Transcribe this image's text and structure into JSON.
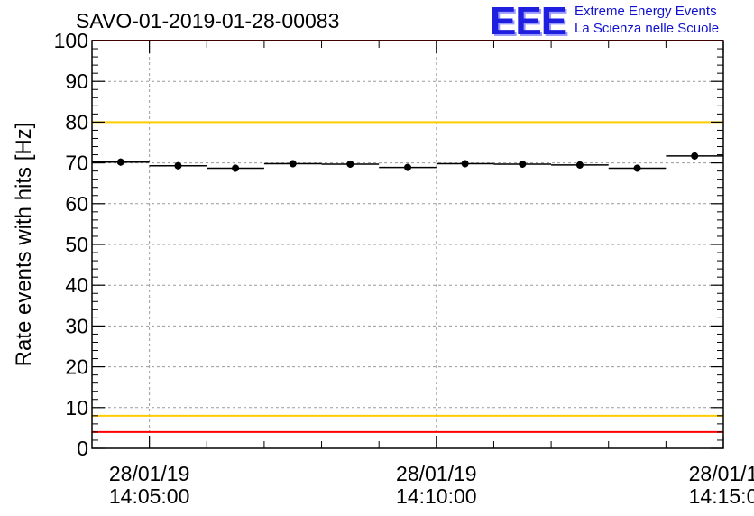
{
  "header": {
    "title": "SAVO-01-2019-01-28-00083",
    "logo_mark": "EEE",
    "logo_line1": "Extreme Energy Events",
    "logo_line2": "La Scienza nelle Scuole"
  },
  "colors": {
    "red_line": "#ff0000",
    "yellow_line": "#ffcc00",
    "data": "#000000",
    "grid": "#9a9a9a",
    "logo": "#1f1fe0"
  },
  "chart_data": {
    "type": "scatter",
    "title": "SAVO-01-2019-01-28-00083",
    "xlabel": "",
    "ylabel": "Rate events with hits [Hz]",
    "ylim": [
      0,
      100
    ],
    "xlim_seconds_from_14_05_00": [
      -60,
      600
    ],
    "y_ticks": [
      0,
      10,
      20,
      30,
      40,
      50,
      60,
      70,
      80,
      90,
      100
    ],
    "x_ticks": [
      {
        "t": 0,
        "line1": "28/01/19",
        "line2": "14:05:00"
      },
      {
        "t": 300,
        "line1": "28/01/19",
        "line2": "14:10:00"
      },
      {
        "t": 600,
        "line1": "28/01/1",
        "line2": "14:15:0"
      }
    ],
    "grid": true,
    "bin_width_seconds": 60,
    "points": [
      {
        "t": -30,
        "y": 70.2
      },
      {
        "t": 30,
        "y": 69.3
      },
      {
        "t": 90,
        "y": 68.7
      },
      {
        "t": 150,
        "y": 69.8
      },
      {
        "t": 210,
        "y": 69.7
      },
      {
        "t": 270,
        "y": 68.9
      },
      {
        "t": 330,
        "y": 69.8
      },
      {
        "t": 390,
        "y": 69.7
      },
      {
        "t": 450,
        "y": 69.5
      },
      {
        "t": 510,
        "y": 68.7
      },
      {
        "t": 570,
        "y": 71.7
      }
    ],
    "reference_lines": [
      {
        "y": 100,
        "color": "red"
      },
      {
        "y": 80,
        "color": "yellow"
      },
      {
        "y": 8,
        "color": "yellow"
      },
      {
        "y": 4,
        "color": "red"
      }
    ]
  }
}
